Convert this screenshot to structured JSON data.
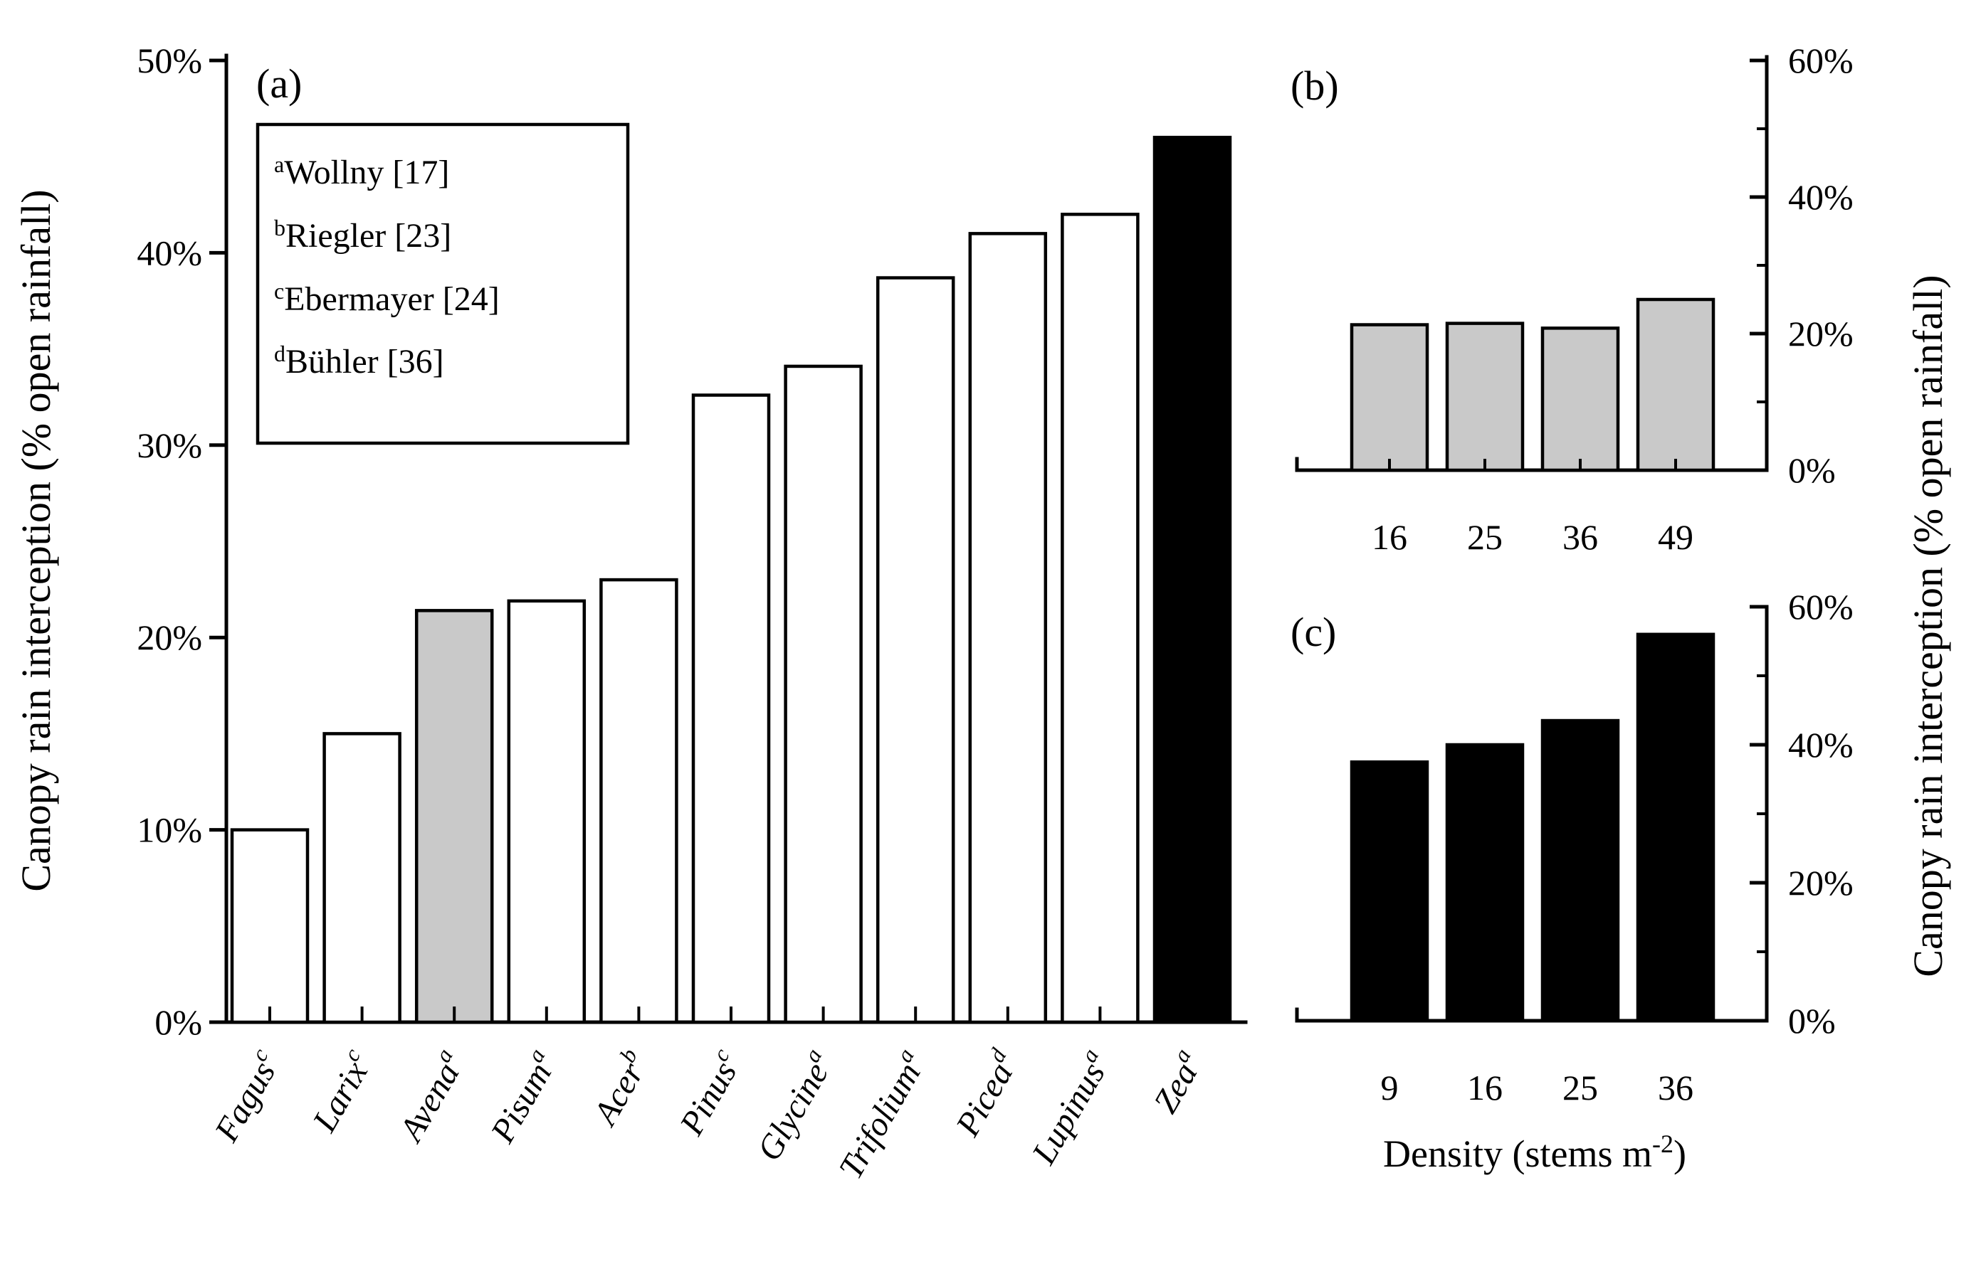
{
  "figure": {
    "left_axis_label": "Canopy rain interception (% open rainfall)",
    "right_axis_label": "Canopy rain interception (% open rainfall)"
  },
  "panel_labels": {
    "a": "(a)",
    "b": "(b)",
    "c": "(c)"
  },
  "legend": {
    "items": [
      {
        "sup": "a",
        "label": "Wollny [17]"
      },
      {
        "sup": "b",
        "label": "Riegler [23]"
      },
      {
        "sup": "c",
        "label": "Ebermayer [24]"
      },
      {
        "sup": "d",
        "label": "Bühler [36]"
      }
    ]
  },
  "chart_data": [
    {
      "id": "a",
      "type": "bar",
      "title": "Canopy rain interception by genus",
      "ylabel": "Canopy rain interception (% open rainfall)",
      "ylim": [
        0,
        50
      ],
      "grid": false,
      "yticks": [
        {
          "value": 0,
          "label": "0%"
        },
        {
          "value": 10,
          "label": "10%"
        },
        {
          "value": 20,
          "label": "20%"
        },
        {
          "value": 30,
          "label": "30%"
        },
        {
          "value": 40,
          "label": "40%"
        },
        {
          "value": 50,
          "label": "50%"
        }
      ],
      "categories": [
        {
          "name": "Fagus",
          "ref": "c"
        },
        {
          "name": "Larix",
          "ref": "c"
        },
        {
          "name": "Avena",
          "ref": "a"
        },
        {
          "name": "Pisum",
          "ref": "a"
        },
        {
          "name": "Acer",
          "ref": "b"
        },
        {
          "name": "Pinus",
          "ref": "c"
        },
        {
          "name": "Glycine",
          "ref": "a"
        },
        {
          "name": "Trifolium",
          "ref": "a"
        },
        {
          "name": "Picea",
          "ref": "d"
        },
        {
          "name": "Lupinus",
          "ref": "a"
        },
        {
          "name": "Zea",
          "ref": "a"
        }
      ],
      "values": [
        10,
        15,
        21.4,
        21.9,
        23,
        32.6,
        34.1,
        38.7,
        41,
        42,
        46
      ],
      "bar_fills": [
        "#ffffff",
        "#ffffff",
        "#c9c9c9",
        "#ffffff",
        "#ffffff",
        "#ffffff",
        "#ffffff",
        "#ffffff",
        "#ffffff",
        "#ffffff",
        "#000000"
      ]
    },
    {
      "id": "b",
      "type": "bar",
      "title": "Canopy rain interception vs density (gray bars)",
      "ylim": [
        0,
        60
      ],
      "grid": false,
      "yticks": [
        {
          "value": 0,
          "label": "0%"
        },
        {
          "value": 20,
          "label": "20%"
        },
        {
          "value": 40,
          "label": "40%"
        },
        {
          "value": 60,
          "label": "60%"
        }
      ],
      "minor_yticks": [
        10,
        30,
        50
      ],
      "categories": [
        {
          "name": "16"
        },
        {
          "name": "25"
        },
        {
          "name": "36"
        },
        {
          "name": "49"
        }
      ],
      "values": [
        21.3,
        21.5,
        20.8,
        25
      ],
      "bar_fills": [
        "#c9c9c9",
        "#c9c9c9",
        "#c9c9c9",
        "#c9c9c9"
      ]
    },
    {
      "id": "c",
      "type": "bar",
      "title": "Canopy rain interception vs density (black bars)",
      "ylim": [
        0,
        60
      ],
      "grid": false,
      "yticks": [
        {
          "value": 0,
          "label": "0%"
        },
        {
          "value": 20,
          "label": "20%"
        },
        {
          "value": 40,
          "label": "40%"
        },
        {
          "value": 60,
          "label": "60%"
        }
      ],
      "minor_yticks": [
        10,
        30,
        50
      ],
      "categories": [
        {
          "name": "9"
        },
        {
          "name": "16"
        },
        {
          "name": "25"
        },
        {
          "name": "36"
        }
      ],
      "values": [
        37.5,
        40,
        43.5,
        56
      ],
      "bar_fills": [
        "#000000",
        "#000000",
        "#000000",
        "#000000"
      ],
      "xlabel_main": "Density (stems m",
      "xlabel_sup": "-2",
      "xlabel_close": ")"
    }
  ]
}
